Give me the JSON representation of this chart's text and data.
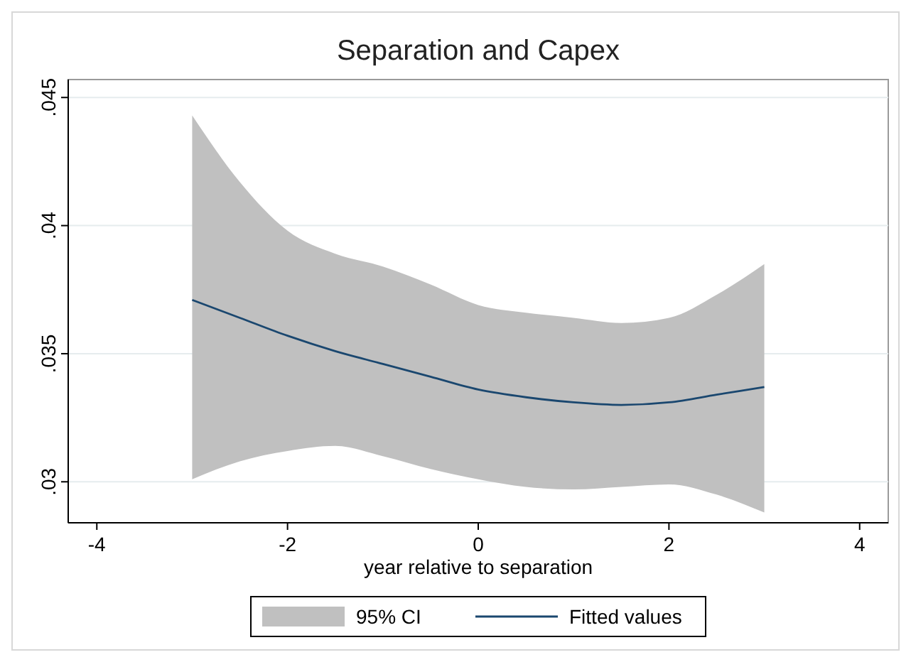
{
  "chart_data": {
    "type": "line",
    "title": "Separation and Capex",
    "xlabel": "year relative to separation",
    "x": [
      -3,
      -2.5,
      -2,
      -1.5,
      -1,
      -0.5,
      0,
      0.5,
      1,
      1.5,
      2,
      2.5,
      3
    ],
    "series": [
      {
        "name": "Fitted values",
        "color": "#1a476f",
        "values": [
          0.0371,
          0.0364,
          0.0357,
          0.0351,
          0.0346,
          0.0341,
          0.0336,
          0.0333,
          0.0331,
          0.033,
          0.0331,
          0.0334,
          0.0337
        ],
        "lower": [
          0.0301,
          0.0308,
          0.0312,
          0.0314,
          0.031,
          0.0305,
          0.0301,
          0.0298,
          0.0297,
          0.0298,
          0.0299,
          0.0295,
          0.0288
        ],
        "upper": [
          0.0443,
          0.0417,
          0.0398,
          0.0389,
          0.0384,
          0.0377,
          0.0369,
          0.0366,
          0.0364,
          0.0362,
          0.0364,
          0.0373,
          0.0385
        ]
      }
    ],
    "annotations": [
      "95% CI"
    ],
    "xlim": [
      -4.3,
      4.3
    ],
    "xticks": [
      -4,
      -2,
      0,
      2,
      4
    ],
    "ylim": [
      0.0284,
      0.0457
    ],
    "yticks": [
      {
        "value": 0.03,
        "label": ".03"
      },
      {
        "value": 0.035,
        "label": ".035"
      },
      {
        "value": 0.04,
        "label": ".04"
      },
      {
        "value": 0.045,
        "label": ".045"
      }
    ],
    "grid": "y",
    "legend": "bottom",
    "marker": "none",
    "line_style": "solid"
  }
}
